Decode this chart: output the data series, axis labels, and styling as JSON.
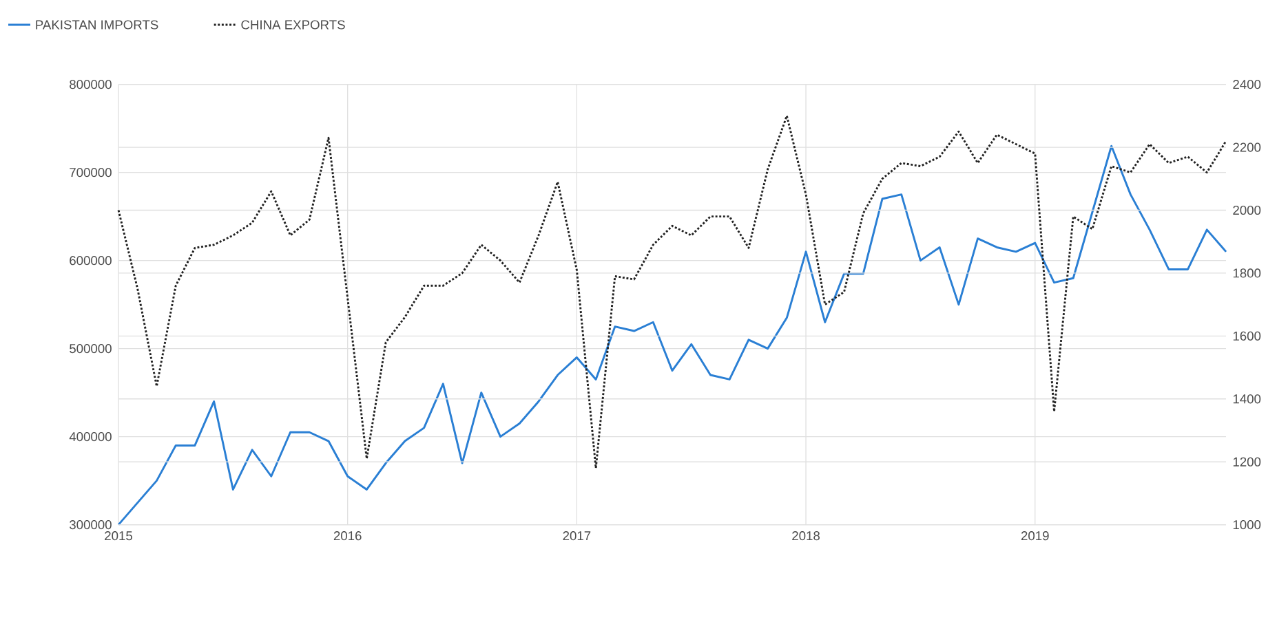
{
  "chart_data": {
    "type": "line",
    "x": [
      "2015-01",
      "2015-02",
      "2015-03",
      "2015-04",
      "2015-05",
      "2015-06",
      "2015-07",
      "2015-08",
      "2015-09",
      "2015-10",
      "2015-11",
      "2015-12",
      "2016-01",
      "2016-02",
      "2016-03",
      "2016-04",
      "2016-05",
      "2016-06",
      "2016-07",
      "2016-08",
      "2016-09",
      "2016-10",
      "2016-11",
      "2016-12",
      "2017-01",
      "2017-02",
      "2017-03",
      "2017-04",
      "2017-05",
      "2017-06",
      "2017-07",
      "2017-08",
      "2017-09",
      "2017-10",
      "2017-11",
      "2017-12",
      "2018-01",
      "2018-02",
      "2018-03",
      "2018-04",
      "2018-05",
      "2018-06",
      "2018-07",
      "2018-08",
      "2018-09",
      "2018-10",
      "2018-11",
      "2018-12",
      "2019-01",
      "2019-02",
      "2019-03",
      "2019-04",
      "2019-05",
      "2019-06",
      "2019-07",
      "2019-08",
      "2019-09",
      "2019-10",
      "2019-11"
    ],
    "series": [
      {
        "name": "PAKISTAN IMPORTS",
        "color": "#2a7fd4",
        "line_style": "solid",
        "values": [
          300000,
          325000,
          350000,
          390000,
          390000,
          440000,
          340000,
          385000,
          355000,
          405000,
          405000,
          395000,
          355000,
          340000,
          370000,
          395000,
          410000,
          460000,
          370000,
          450000,
          400000,
          415000,
          440000,
          470000,
          490000,
          465000,
          525000,
          520000,
          530000,
          475000,
          505000,
          470000,
          465000,
          510000,
          500000,
          535000,
          610000,
          530000,
          585000,
          585000,
          670000,
          675000,
          600000,
          615000,
          550000,
          625000,
          615000,
          610000,
          620000,
          575000,
          580000,
          655000,
          730000,
          675000,
          635000,
          590000,
          590000,
          635000,
          610000
        ]
      },
      {
        "name": "CHINA EXPORTS",
        "color": "#222222",
        "line_style": "dotted",
        "axis": "y2",
        "values": [
          2000,
          1750,
          1440,
          1760,
          1880,
          1890,
          1920,
          1960,
          2060,
          1920,
          1970,
          2230,
          1720,
          1210,
          1580,
          1660,
          1760,
          1760,
          1800,
          1890,
          1840,
          1770,
          1920,
          2090,
          1810,
          1180,
          1790,
          1780,
          1890,
          1950,
          1920,
          1980,
          1980,
          1880,
          2130,
          2300,
          2050,
          1700,
          1740,
          1990,
          2100,
          2150,
          2140,
          2170,
          2250,
          2150,
          2240,
          2210,
          2180,
          1360,
          1980,
          1940,
          2140,
          2120,
          2210,
          2150,
          2170,
          2120,
          2220
        ]
      }
    ],
    "xlim": [
      "2015-01",
      "2019-11"
    ],
    "xticks": [
      "2015",
      "2016",
      "2017",
      "2018",
      "2019"
    ],
    "ylim": [
      300000,
      800000
    ],
    "yticks": [
      300000,
      400000,
      500000,
      600000,
      700000,
      800000
    ],
    "y2lim": [
      1000,
      2400
    ],
    "y2ticks": [
      1000,
      1200,
      1400,
      1600,
      1800,
      2000,
      2200,
      2400
    ],
    "grid": true,
    "legend": "top left"
  }
}
